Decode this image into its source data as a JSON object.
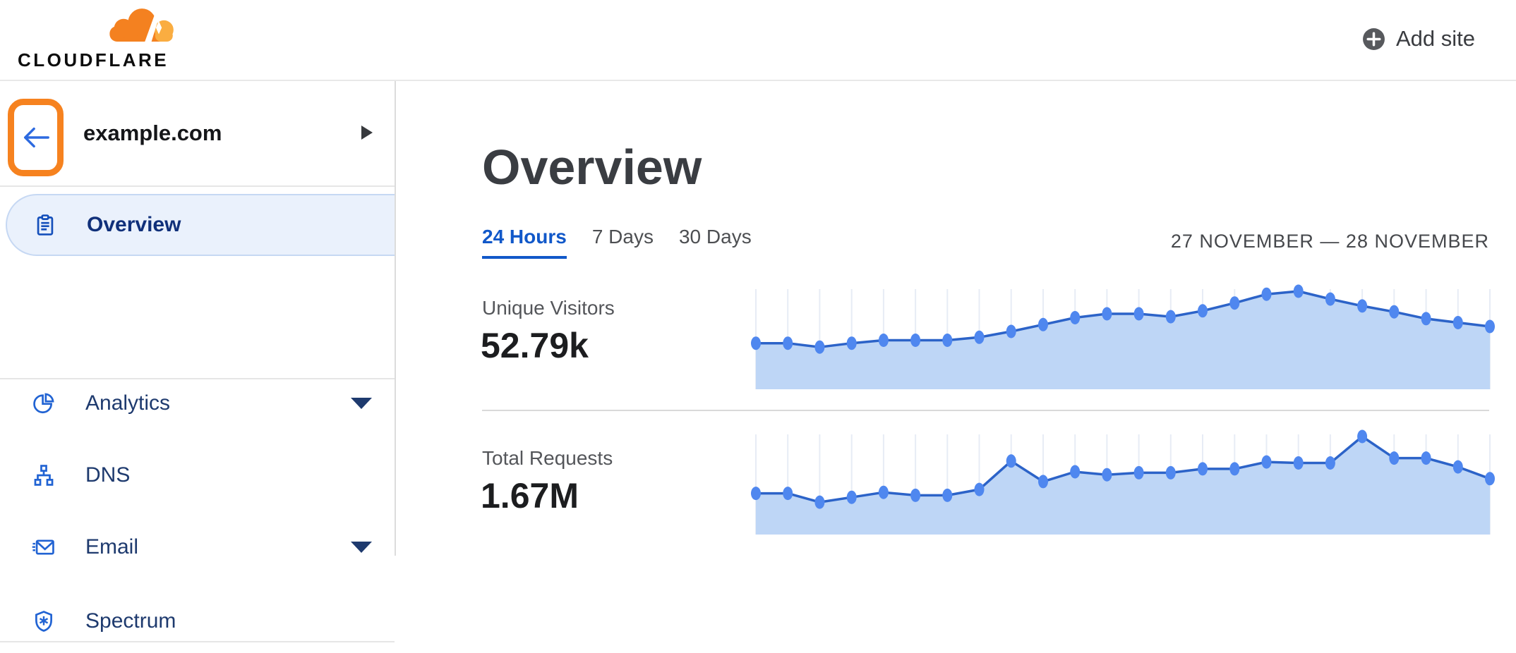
{
  "topbar": {
    "brand": "CLOUDFLARE",
    "add_site_label": "Add site"
  },
  "sidebar": {
    "site_name": "example.com",
    "back_button_highlighted": true,
    "highlight_color": "#f6821f",
    "items": [
      {
        "label": "Overview",
        "icon": "clipboard-icon",
        "selected": true,
        "expandable": false
      },
      {
        "label": "Analytics",
        "icon": "pie-chart-icon",
        "selected": false,
        "expandable": true
      },
      {
        "label": "DNS",
        "icon": "sitemap-icon",
        "selected": false,
        "expandable": false
      },
      {
        "label": "Email",
        "icon": "envelope-icon",
        "selected": false,
        "expandable": true
      },
      {
        "label": "Spectrum",
        "icon": "shield-icon",
        "selected": false,
        "expandable": false
      }
    ]
  },
  "main": {
    "heading": "Overview",
    "tabs": [
      {
        "label": "24 Hours",
        "active": true
      },
      {
        "label": "7 Days",
        "active": false
      },
      {
        "label": "30 Days",
        "active": false
      }
    ],
    "date_range": "27 NOVEMBER — 28 NOVEMBER",
    "metrics": [
      {
        "label": "Unique Visitors",
        "value": "52.79k"
      },
      {
        "label": "Total Requests",
        "value": "1.67M"
      }
    ]
  },
  "colors": {
    "brand_orange": "#f6821f",
    "brand_orange_light": "#faad41",
    "link_blue": "#1158c9",
    "nav_icon_blue": "#2163d3",
    "nav_label_navy": "#1e3a6e",
    "chart_line": "#2c63c8",
    "chart_dot": "#4f87ef",
    "chart_fill": "#bed6f6",
    "chart_grid": "#e7ecf5"
  },
  "chart_data": [
    {
      "type": "area",
      "title": "Unique Visitors",
      "summary_value": "52.79k",
      "period": "24 Hours",
      "x_description": "24 hourly points, 27 November — 28 November (axes unlabeled in UI)",
      "x": [
        1,
        2,
        3,
        4,
        5,
        6,
        7,
        8,
        9,
        10,
        11,
        12,
        13,
        14,
        15,
        16,
        17,
        18,
        19,
        20,
        21,
        22,
        23,
        24
      ],
      "values_normalized": [
        0.47,
        0.47,
        0.43,
        0.47,
        0.5,
        0.5,
        0.5,
        0.53,
        0.59,
        0.66,
        0.73,
        0.77,
        0.77,
        0.74,
        0.8,
        0.88,
        0.97,
        1.0,
        0.92,
        0.85,
        0.79,
        0.72,
        0.68,
        0.64
      ],
      "ylim": [
        0,
        1
      ],
      "grid": "vertical-only",
      "legend": "none",
      "line_color": "#2c63c8",
      "dot_color": "#4f87ef",
      "fill_color": "#bed6f6",
      "grid_color": "#e7ecf5"
    },
    {
      "type": "area",
      "title": "Total Requests",
      "summary_value": "1.67M",
      "period": "24 Hours",
      "x_description": "24 hourly points, 27 November — 28 November (axes unlabeled in UI)",
      "x": [
        1,
        2,
        3,
        4,
        5,
        6,
        7,
        8,
        9,
        10,
        11,
        12,
        13,
        14,
        15,
        16,
        17,
        18,
        19,
        20,
        21,
        22,
        23,
        24
      ],
      "values_normalized": [
        0.42,
        0.42,
        0.33,
        0.38,
        0.43,
        0.4,
        0.4,
        0.46,
        0.75,
        0.54,
        0.64,
        0.61,
        0.63,
        0.63,
        0.67,
        0.67,
        0.74,
        0.73,
        0.73,
        1.0,
        0.78,
        0.78,
        0.69,
        0.57
      ],
      "ylim": [
        0,
        1
      ],
      "grid": "vertical-only",
      "legend": "none",
      "line_color": "#2c63c8",
      "dot_color": "#4f87ef",
      "fill_color": "#bed6f6",
      "grid_color": "#e7ecf5"
    }
  ]
}
